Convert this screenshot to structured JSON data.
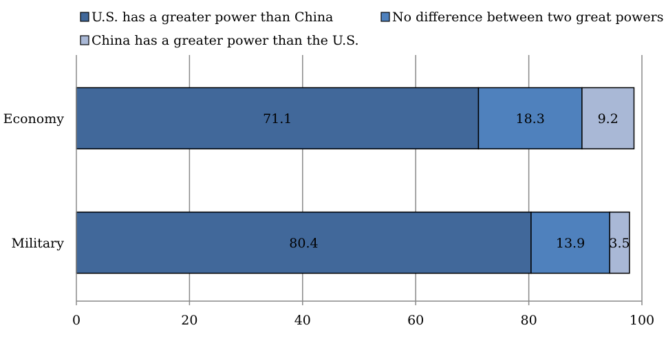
{
  "chart_data": {
    "type": "bar",
    "orientation": "horizontal",
    "stacked": true,
    "categories": [
      "Economy",
      "Military"
    ],
    "series": [
      {
        "name": "U.S. has a greater power than China",
        "values": [
          71.1,
          80.4
        ],
        "color": "#41689A"
      },
      {
        "name": "No difference between two great powers",
        "values": [
          18.3,
          13.9
        ],
        "color": "#4F81BD"
      },
      {
        "name": "China has a greater power than the U.S.",
        "values": [
          9.2,
          3.5
        ],
        "color": "#A9B8D6"
      }
    ],
    "xlim": [
      0,
      100
    ],
    "xticks": [
      0,
      20,
      40,
      60,
      80,
      100
    ],
    "grid": "vertical",
    "legend_position": "top",
    "title": "",
    "xlabel": "",
    "ylabel": ""
  }
}
